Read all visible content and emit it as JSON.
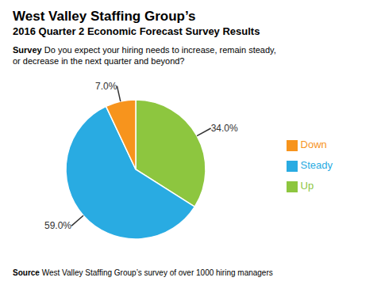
{
  "chart_data": {
    "type": "pie",
    "title": "West Valley Staffing Group’s",
    "subtitle": "2016 Quarter 2 Economic Forecast Survey Results",
    "annotations": [
      {
        "bold": "Survey",
        "text": " Do you expect your hiring needs to increase, remain steady,\nor decrease in the next quarter and beyond?"
      },
      {
        "bold": "Source",
        "text": " West Valley Staffing Group’s survey of over 1000 hiring managers"
      }
    ],
    "categories": [
      "Up",
      "Steady",
      "Down"
    ],
    "values": [
      34.0,
      59.0,
      7.0
    ],
    "value_labels": [
      "34.0%",
      "59.0%",
      "7.0%"
    ],
    "colors": [
      "#8dc63f",
      "#29abe2",
      "#f7941d"
    ],
    "data_labels": true,
    "legend": "right"
  }
}
